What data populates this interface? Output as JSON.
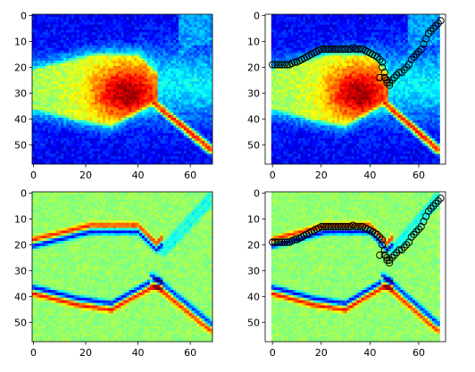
{
  "chart_data": [
    {
      "type": "heatmap",
      "panel": "top-left",
      "colormap": "jet",
      "x_ticks": [
        0,
        20,
        40,
        60
      ],
      "y_ticks": [
        0,
        10,
        20,
        30,
        40,
        50
      ],
      "xlim": [
        -0.5,
        68.5
      ],
      "ylim": [
        57.5,
        -0.5
      ],
      "field": "intensity",
      "overlay": null
    },
    {
      "type": "heatmap",
      "panel": "top-right",
      "colormap": "jet",
      "x_ticks": [
        0,
        20,
        40,
        60
      ],
      "y_ticks": [
        0,
        10,
        20,
        30,
        40,
        50
      ],
      "xlim": [
        -3,
        71
      ],
      "ylim": [
        57.5,
        -0.5
      ],
      "field": "intensity",
      "overlay": "path"
    },
    {
      "type": "heatmap",
      "panel": "bottom-left",
      "colormap": "jet",
      "x_ticks": [
        0,
        20,
        40,
        60
      ],
      "y_ticks": [
        0,
        10,
        20,
        30,
        40,
        50
      ],
      "xlim": [
        -0.5,
        68.5
      ],
      "ylim": [
        57.5,
        -0.5
      ],
      "field": "gradient",
      "overlay": null
    },
    {
      "type": "heatmap",
      "panel": "bottom-right",
      "colormap": "jet",
      "x_ticks": [
        0,
        20,
        40,
        60
      ],
      "y_ticks": [
        0,
        10,
        20,
        30,
        40,
        50
      ],
      "xlim": [
        -3,
        71
      ],
      "ylim": [
        57.5,
        -0.5
      ],
      "field": "gradient",
      "overlay": "path"
    }
  ],
  "grid_size": {
    "cols": 69,
    "rows": 58
  },
  "path_points": {
    "x": [
      0,
      1,
      2,
      3,
      4,
      5,
      6,
      7,
      8,
      9,
      10,
      11,
      12,
      13,
      14,
      15,
      16,
      17,
      18,
      19,
      20,
      21,
      22,
      23,
      24,
      25,
      26,
      27,
      28,
      29,
      30,
      31,
      32,
      33,
      34,
      35,
      36,
      37,
      38,
      39,
      40,
      41,
      42,
      43,
      44,
      44,
      45,
      45,
      46,
      46,
      47,
      47,
      48,
      48,
      49,
      50,
      51,
      52,
      53,
      54,
      55,
      56,
      57,
      58,
      59,
      60,
      61,
      62,
      63,
      64,
      65,
      66,
      67,
      68,
      69
    ],
    "y": [
      19,
      19,
      19,
      19,
      19,
      19,
      19,
      19,
      18.5,
      18,
      18,
      17.5,
      17,
      16.5,
      16,
      15.5,
      15,
      14.5,
      14,
      13.5,
      13,
      13,
      13,
      13,
      13,
      13,
      13,
      13,
      13,
      13,
      13,
      13,
      13,
      12.5,
      13,
      13,
      13,
      13,
      13.5,
      14,
      14.5,
      15,
      15.5,
      16,
      17,
      24,
      18,
      20,
      22,
      24,
      25,
      26,
      27,
      26,
      25,
      24,
      23,
      22,
      22,
      21,
      20,
      19,
      17,
      16,
      15,
      14,
      13,
      11,
      9,
      7,
      6,
      5,
      4,
      3,
      2
    ]
  }
}
